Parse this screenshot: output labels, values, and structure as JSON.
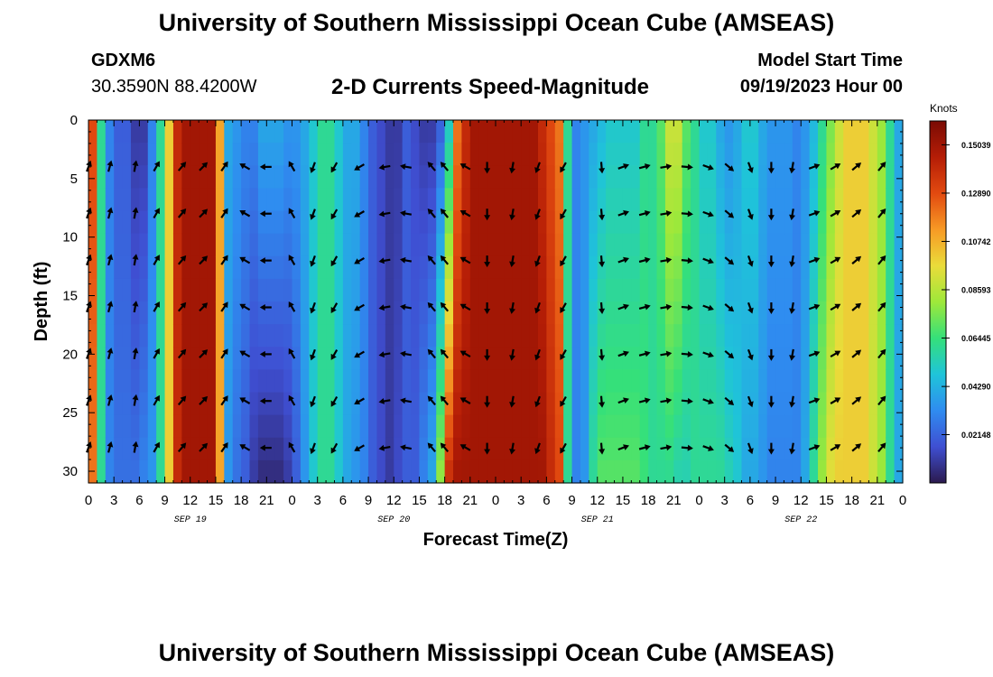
{
  "header": {
    "title": "University of Southern Mississippi Ocean Cube (AMSEAS)",
    "station_id": "GDXM6",
    "coordinates": "30.3590N  88.4200W",
    "subtitle": "2-D Currents Speed-Magnitude",
    "model_start_label": "Model Start Time",
    "model_start_value": "09/19/2023 Hour 00"
  },
  "footer": {
    "repeated_title": "University of Southern Mississippi Ocean Cube (AMSEAS)"
  },
  "chart_data": {
    "type": "heatmap",
    "title": "2-D Currents Speed-Magnitude",
    "xlabel": "Forecast Time(Z)",
    "ylabel": "Depth (ft)",
    "x_range_hours": [
      0,
      96
    ],
    "ylim": [
      31,
      0
    ],
    "x_tick_hours": [
      0,
      3,
      6,
      9,
      12,
      15,
      18,
      21,
      24,
      27,
      30,
      33,
      36,
      39,
      42,
      45,
      48,
      51,
      54,
      57,
      60,
      63,
      66,
      69,
      72,
      75,
      78,
      81,
      84,
      87,
      90,
      93,
      96
    ],
    "x_tick_labels": [
      "0",
      "3",
      "6",
      "9",
      "12",
      "15",
      "18",
      "21",
      "0",
      "3",
      "6",
      "9",
      "12",
      "15",
      "18",
      "21",
      "0",
      "3",
      "6",
      "9",
      "12",
      "15",
      "18",
      "21",
      "0",
      "3",
      "6",
      "9",
      "12",
      "15",
      "18",
      "21",
      "0"
    ],
    "y_ticks": [
      0,
      5,
      10,
      15,
      20,
      25,
      30
    ],
    "y_tick_labels": [
      "0",
      "5",
      "10",
      "15",
      "20",
      "25",
      "30"
    ],
    "date_labels": [
      {
        "hour": 12,
        "text": "SEP 19"
      },
      {
        "hour": 36,
        "text": "SEP 20"
      },
      {
        "hour": 60,
        "text": "SEP 21"
      },
      {
        "hour": 84,
        "text": "SEP 22"
      }
    ],
    "colorbar": {
      "unit": "Knots",
      "range": [
        0,
        0.161
      ],
      "ticks": [
        0.15039,
        0.1289,
        0.10742,
        0.08593,
        0.06445,
        0.0429,
        0.02148
      ],
      "tick_labels": [
        "0.15039",
        "0.12890",
        "0.10742",
        "0.08593",
        "0.06445",
        "0.04290",
        "0.02148"
      ],
      "colors": [
        "#2b1a4e",
        "#3f4fd2",
        "#2f8cf0",
        "#1fc4d9",
        "#35e07a",
        "#9ee83a",
        "#eadc3a",
        "#f79a25",
        "#e24a10",
        "#b51d06",
        "#7a0b04"
      ]
    },
    "speed_profile": {
      "hours": [
        0,
        1,
        2,
        3,
        4,
        5,
        6,
        7,
        8,
        9,
        10,
        11,
        12,
        13,
        14,
        15,
        16,
        17,
        18,
        19,
        20,
        21,
        22,
        23,
        24,
        25,
        26,
        27,
        28,
        29,
        30,
        31,
        32,
        33,
        34,
        35,
        36,
        37,
        38,
        39,
        40,
        41,
        42,
        43,
        44,
        45,
        46,
        47,
        48,
        49,
        50,
        51,
        52,
        53,
        54,
        55,
        56,
        57,
        58,
        59,
        60,
        61,
        62,
        63,
        64,
        65,
        66,
        67,
        68,
        69,
        70,
        71,
        72,
        73,
        74,
        75,
        76,
        77,
        78,
        79,
        80,
        81,
        82,
        83,
        84,
        85,
        86,
        87,
        88,
        89,
        90,
        91,
        92,
        93,
        94,
        95,
        96
      ],
      "surface_knots": [
        0.13,
        0.06,
        0.03,
        0.02,
        0.02,
        0.01,
        0.01,
        0.03,
        0.06,
        0.1,
        0.14,
        0.15,
        0.15,
        0.15,
        0.15,
        0.11,
        0.04,
        0.035,
        0.03,
        0.03,
        0.04,
        0.04,
        0.04,
        0.035,
        0.035,
        0.04,
        0.05,
        0.06,
        0.06,
        0.05,
        0.04,
        0.04,
        0.03,
        0.02,
        0.015,
        0.01,
        0.01,
        0.02,
        0.015,
        0.01,
        0.01,
        0.02,
        0.05,
        0.12,
        0.14,
        0.15,
        0.15,
        0.15,
        0.15,
        0.15,
        0.15,
        0.15,
        0.15,
        0.14,
        0.13,
        0.12,
        0.06,
        0.03,
        0.035,
        0.04,
        0.045,
        0.05,
        0.05,
        0.05,
        0.05,
        0.06,
        0.06,
        0.07,
        0.09,
        0.09,
        0.07,
        0.06,
        0.05,
        0.05,
        0.04,
        0.035,
        0.04,
        0.05,
        0.05,
        0.04,
        0.035,
        0.035,
        0.035,
        0.03,
        0.035,
        0.045,
        0.06,
        0.075,
        0.09,
        0.1,
        0.1,
        0.1,
        0.09,
        0.08,
        0.06,
        0.04,
        0.02
      ],
      "deep_knots": [
        0.12,
        0.06,
        0.03,
        0.025,
        0.025,
        0.025,
        0.03,
        0.035,
        0.06,
        0.1,
        0.14,
        0.15,
        0.15,
        0.15,
        0.15,
        0.11,
        0.035,
        0.025,
        0.02,
        0.01,
        0.005,
        0.005,
        0.005,
        0.01,
        0.02,
        0.035,
        0.05,
        0.06,
        0.06,
        0.05,
        0.04,
        0.035,
        0.03,
        0.02,
        0.015,
        0.01,
        0.015,
        0.02,
        0.02,
        0.03,
        0.04,
        0.08,
        0.14,
        0.15,
        0.15,
        0.15,
        0.15,
        0.15,
        0.15,
        0.15,
        0.15,
        0.15,
        0.15,
        0.15,
        0.14,
        0.13,
        0.06,
        0.03,
        0.035,
        0.06,
        0.07,
        0.07,
        0.07,
        0.07,
        0.07,
        0.065,
        0.06,
        0.06,
        0.06,
        0.055,
        0.055,
        0.06,
        0.06,
        0.06,
        0.06,
        0.055,
        0.05,
        0.04,
        0.04,
        0.035,
        0.03,
        0.03,
        0.03,
        0.03,
        0.04,
        0.06,
        0.08,
        0.095,
        0.1,
        0.1,
        0.1,
        0.1,
        0.09,
        0.08,
        0.06,
        0.04,
        0.02
      ]
    },
    "vectors": {
      "hours": [
        0,
        2.5,
        5.5,
        8,
        11,
        13.5,
        16,
        18.5,
        21,
        24,
        26.5,
        29,
        32,
        35,
        37.5,
        40.5,
        42,
        44.5,
        47,
        50,
        53,
        56,
        60.5,
        63,
        65.5,
        68,
        70.5,
        73,
        75.5,
        78,
        80.5,
        83,
        85.5,
        88,
        90.5,
        93.5
      ],
      "depths": [
        4,
        8,
        12,
        16,
        20,
        24,
        28
      ],
      "directions_deg": [
        20,
        15,
        10,
        30,
        40,
        45,
        35,
        300,
        270,
        330,
        200,
        210,
        240,
        260,
        280,
        320,
        320,
        300,
        180,
        190,
        200,
        210,
        175,
        70,
        75,
        80,
        95,
        110,
        130,
        160,
        180,
        190,
        70,
        60,
        50,
        40
      ]
    }
  }
}
